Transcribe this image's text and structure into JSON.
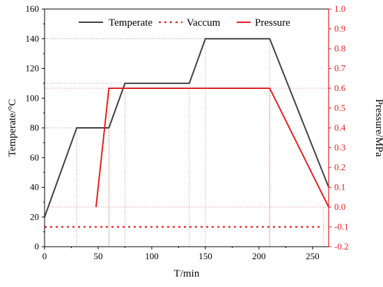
{
  "chart_data": {
    "type": "line",
    "xlabel": "T/min",
    "ylabel": "Temperate/°C",
    "y2label": "Pressure/MPa",
    "xlim": [
      0,
      265
    ],
    "ylim": [
      0,
      160
    ],
    "y2lim": [
      -0.2,
      1.0
    ],
    "x_ticks": [
      0,
      50,
      100,
      150,
      200,
      250
    ],
    "y_ticks": [
      0,
      20,
      40,
      60,
      80,
      100,
      120,
      140,
      160
    ],
    "y2_ticks": [
      "-0.2",
      "-0.1",
      "0.0",
      "0.1",
      "0.2",
      "0.3",
      "0.4",
      "0.5",
      "0.6",
      "0.7",
      "0.8",
      "0.9",
      "1.0"
    ],
    "legend_position": "top",
    "series": [
      {
        "name": "Temperate",
        "axis": "left",
        "color": "#404040",
        "style": "solid",
        "x": [
          0,
          30,
          60,
          75,
          135,
          150,
          210,
          265
        ],
        "y": [
          20,
          80,
          80,
          110,
          110,
          140,
          140,
          40
        ]
      },
      {
        "name": "Vaccum",
        "axis": "right",
        "color": "#e02020",
        "style": "dotted",
        "x": [
          0,
          260
        ],
        "y": [
          -0.1,
          -0.1
        ]
      },
      {
        "name": "Pressure",
        "axis": "right",
        "color": "#e02020",
        "style": "solid",
        "x": [
          48,
          48,
          60,
          210,
          265
        ],
        "y": [
          0.0,
          0.0,
          0.6,
          0.6,
          0.0
        ]
      }
    ],
    "reference_lines": {
      "color_left": "#999999",
      "color_right": "#e88080"
    }
  }
}
